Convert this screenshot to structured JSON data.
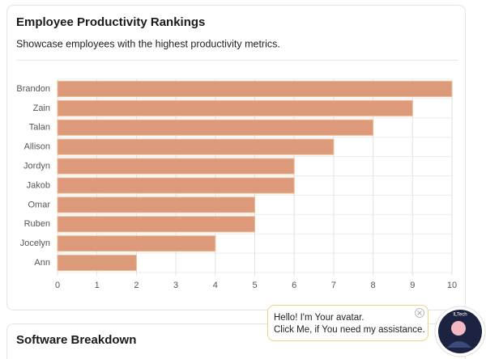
{
  "chart_data": {
    "type": "hbar",
    "title": "Employee Productivity Rankings",
    "subtitle": "Showcase employees with the highest productivity metrics.",
    "categories": [
      "Brandon",
      "Zain",
      "Talan",
      "Allison",
      "Jordyn",
      "Jakob",
      "Omar",
      "Ruben",
      "Jocelyn",
      "Ann"
    ],
    "values": [
      10,
      9,
      8,
      7,
      6,
      6,
      5,
      5,
      4,
      2
    ],
    "color": "#dc9a7a",
    "xlim": [
      0,
      10
    ],
    "xticks": [
      0,
      1,
      2,
      3,
      4,
      5,
      6,
      7,
      8,
      9,
      10
    ],
    "grid": true
  },
  "next_card": {
    "title": "Software Breakdown"
  },
  "chat_bubble": {
    "lines": [
      "Hello! I'm Your avatar.",
      "Click Me, if You need my assistance."
    ]
  },
  "avatar": {
    "label": "ILTech"
  }
}
